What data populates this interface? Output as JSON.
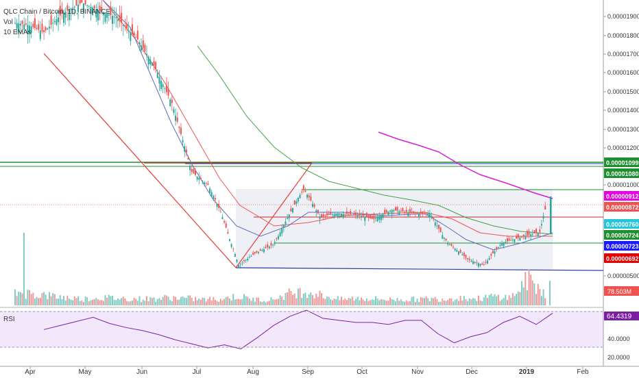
{
  "chart_data": {
    "type": "candlestick",
    "symbol_line": "QLC Chain / Bitcoin, 1D, BINANCE",
    "indicator_labels": [
      "Vol",
      "10 EMAs"
    ],
    "y_axis_ticks": [
      "0.00001900",
      "0.00001800",
      "0.00001700",
      "0.00001600",
      "0.00001500",
      "0.00001400",
      "0.00001300",
      "0.00001200",
      "0.00001000",
      "0.00000800",
      "0.00000500"
    ],
    "x_axis_ticks": [
      "Apr",
      "May",
      "Jun",
      "Jul",
      "Aug",
      "Sep",
      "Oct",
      "Nov",
      "Dec",
      "2019",
      "Feb"
    ],
    "price_badges": [
      {
        "value": "0.00001099",
        "color": "#1e8f2e"
      },
      {
        "value": "0.00001080",
        "color": "#1e8f2e"
      },
      {
        "value": "0.00000912",
        "color": "#e600e6"
      },
      {
        "value": "0.00000872",
        "color": "#ef5350"
      },
      {
        "value": "0.00000760",
        "color": "#26c6da"
      },
      {
        "value": "0.00000724",
        "color": "#1e8f2e"
      },
      {
        "value": "0.00000723",
        "color": "#1a1aff"
      },
      {
        "value": "0.00000692",
        "color": "#e00000"
      }
    ],
    "volume_badge": {
      "value": "78.503M",
      "color": "#ef5350"
    },
    "rsi": {
      "label": "RSI",
      "value": "64.4319",
      "ticks": [
        "40.0000",
        "20.0000"
      ]
    },
    "price_series_approx": {
      "x": [
        "Mar 25",
        "Apr 1",
        "Apr 10",
        "Apr 20",
        "May 1",
        "May 10",
        "May 20",
        "Jun 1",
        "Jun 10",
        "Jun 20",
        "Jul 1",
        "Jul 10",
        "Jul 20",
        "Jul 27",
        "Aug 5",
        "Aug 15",
        "Aug 25",
        "Sep 1",
        "Sep 10",
        "Sep 20",
        "Oct 1",
        "Oct 10",
        "Oct 20",
        "Nov 1",
        "Nov 10",
        "Nov 20",
        "Dec 1",
        "Dec 10",
        "Dec 20",
        "Jan 1",
        "Jan 10",
        "Jan 14"
      ],
      "close": [
        1.85e-05,
        1.84e-05,
        1.8e-05,
        1.9e-05,
        1.96e-05,
        1.92e-05,
        1.88e-05,
        1.76e-05,
        1.62e-05,
        1.42e-05,
        1.06e-05,
        9.9e-06,
        7.4e-06,
        5.4e-06,
        6e-06,
        6.5e-06,
        8.2e-06,
        9.6e-06,
        7.9e-06,
        8.1e-06,
        8e-06,
        7.8e-06,
        8.3e-06,
        8.1e-06,
        8.1e-06,
        6.6e-06,
        5.7e-06,
        5.4e-06,
        6.6e-06,
        7e-06,
        7.2e-06,
        8.7e-06
      ]
    },
    "rsi_series_approx": [
      48,
      52,
      56,
      60,
      54,
      50,
      47,
      43,
      38,
      34,
      30,
      33,
      29,
      40,
      52,
      61,
      67,
      59,
      57,
      55,
      55,
      53,
      57,
      57,
      44,
      35,
      41,
      45,
      55,
      61,
      53,
      64
    ],
    "volume_series_approx": [
      20,
      18,
      15,
      12,
      10,
      12,
      11,
      10,
      10,
      12,
      11,
      9,
      10,
      14,
      9,
      9,
      18,
      22,
      15,
      9,
      11,
      10,
      9,
      9,
      10,
      10,
      12,
      10,
      14,
      12,
      40,
      20
    ]
  }
}
